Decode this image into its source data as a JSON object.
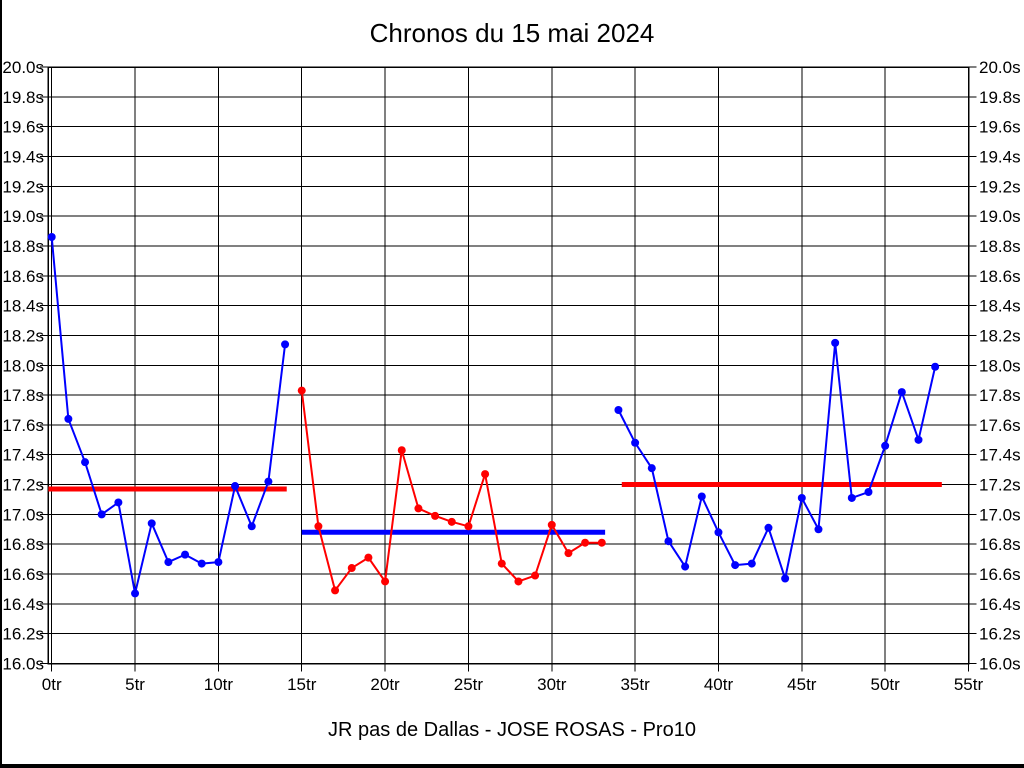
{
  "title": "Chronos du 15 mai 2024",
  "subtitle": "JR pas de Dallas - JOSE ROSAS - Pro10",
  "colors": {
    "blue_series": "#0000ff",
    "red_series": "#ff0000",
    "axis": "#000000",
    "background": "#ffffff"
  },
  "chart_data": {
    "type": "line",
    "title": "Chronos du 15 mai 2024",
    "subtitle": "JR pas de Dallas - JOSE ROSAS - Pro10",
    "x_unit": "tr",
    "y_unit": "s",
    "xlim": [
      0,
      55
    ],
    "ylim": [
      16.0,
      20.0
    ],
    "grid": true,
    "y_ticks": [
      {
        "value": 20.0,
        "label": "20.0s"
      },
      {
        "value": 19.8,
        "label": "19.8s"
      },
      {
        "value": 19.6,
        "label": "19.6s"
      },
      {
        "value": 19.4,
        "label": "19.4s"
      },
      {
        "value": 19.2,
        "label": "19.2s"
      },
      {
        "value": 19.0,
        "label": "19.0s"
      },
      {
        "value": 18.8,
        "label": "18.8s"
      },
      {
        "value": 18.6,
        "label": "18.6s"
      },
      {
        "value": 18.4,
        "label": "18.4s"
      },
      {
        "value": 18.2,
        "label": "18.2s"
      },
      {
        "value": 18.0,
        "label": "18.0s"
      },
      {
        "value": 17.8,
        "label": "17.8s"
      },
      {
        "value": 17.6,
        "label": "17.6s"
      },
      {
        "value": 17.4,
        "label": "17.4s"
      },
      {
        "value": 17.2,
        "label": "17.2s"
      },
      {
        "value": 17.0,
        "label": "17.0s"
      },
      {
        "value": 16.8,
        "label": "16.8s"
      },
      {
        "value": 16.6,
        "label": "16.6s"
      },
      {
        "value": 16.4,
        "label": "16.4s"
      },
      {
        "value": 16.2,
        "label": "16.2s"
      },
      {
        "value": 16.0,
        "label": "16.0s"
      }
    ],
    "x_ticks": [
      {
        "value": 0,
        "label": "0tr"
      },
      {
        "value": 5,
        "label": "5tr"
      },
      {
        "value": 10,
        "label": "10tr"
      },
      {
        "value": 15,
        "label": "15tr"
      },
      {
        "value": 20,
        "label": "20tr"
      },
      {
        "value": 25,
        "label": "25tr"
      },
      {
        "value": 30,
        "label": "30tr"
      },
      {
        "value": 35,
        "label": "35tr"
      },
      {
        "value": 40,
        "label": "40tr"
      },
      {
        "value": 45,
        "label": "45tr"
      },
      {
        "value": 50,
        "label": "50tr"
      },
      {
        "value": 55,
        "label": "55tr"
      }
    ],
    "series": [
      {
        "name": "stint-1-laps",
        "color": "#0000ff",
        "x_start": 0,
        "values": [
          18.86,
          17.64,
          17.35,
          17.0,
          17.08,
          16.47,
          16.94,
          16.68,
          16.73,
          16.67,
          16.68,
          17.19,
          16.92,
          17.22,
          18.14
        ]
      },
      {
        "name": "stint-2-laps",
        "color": "#ff0000",
        "x_start": 15,
        "values": [
          17.83,
          16.92,
          16.49,
          16.64,
          16.71,
          16.55,
          17.43,
          17.04,
          16.99,
          16.95,
          16.92,
          17.27,
          16.67,
          16.55,
          16.59,
          16.93,
          16.74,
          16.81,
          16.81
        ]
      },
      {
        "name": "stint-3-laps",
        "color": "#0000ff",
        "x_start": 34,
        "values": [
          17.7,
          17.48,
          17.31,
          16.82,
          16.65,
          17.12,
          16.88,
          16.66,
          16.67,
          16.91,
          16.57,
          17.11,
          16.9,
          18.15,
          17.11,
          17.15,
          17.46,
          17.82,
          17.5,
          17.99
        ]
      }
    ],
    "average_lines": [
      {
        "name": "stint-1-average",
        "color": "#ff0000",
        "value": 17.17,
        "x_from": -0.2,
        "x_to": 14.1
      },
      {
        "name": "stint-2-average",
        "color": "#0000ff",
        "value": 16.88,
        "x_from": 15.0,
        "x_to": 33.2
      },
      {
        "name": "stint-3-average",
        "color": "#ff0000",
        "value": 17.2,
        "x_from": 34.2,
        "x_to": 53.4
      }
    ],
    "legend_position": "none"
  }
}
